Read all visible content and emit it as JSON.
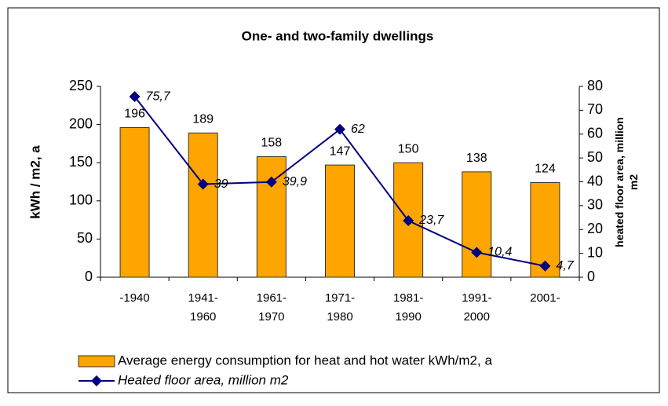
{
  "chart_data": {
    "type": "bar_line",
    "title": "One- and two-family dwellings",
    "ylabel": "kWh / m2, a",
    "y2label": "heated floor area, million\nm2",
    "categories": [
      "-1940",
      "1941-\n1960",
      "1961-\n1970",
      "1971-\n1980",
      "1981-\n1990",
      "1991-\n2000",
      "2001-"
    ],
    "series": [
      {
        "name": "Average energy consumption for heat and hot water kWh/m2, a",
        "type": "bar",
        "color": "#FFA500",
        "values": [
          196,
          189,
          158,
          147,
          150,
          138,
          124
        ]
      },
      {
        "name": "Heated floor area, million m2",
        "type": "line",
        "axis": "y2",
        "color": "#000080",
        "values": [
          75.7,
          39,
          39.9,
          62,
          23.7,
          10.4,
          4.7
        ],
        "value_labels": [
          "75,7",
          "39",
          "39,9",
          "62",
          "23,7",
          "10,4",
          "4,7"
        ]
      }
    ],
    "ylim": [
      0,
      250
    ],
    "yticks": [
      0,
      50,
      100,
      150,
      200,
      250
    ],
    "y2lim": [
      0,
      80
    ],
    "y2ticks": [
      0,
      10,
      20,
      30,
      40,
      50,
      60,
      70,
      80
    ],
    "legend": "bottom"
  }
}
